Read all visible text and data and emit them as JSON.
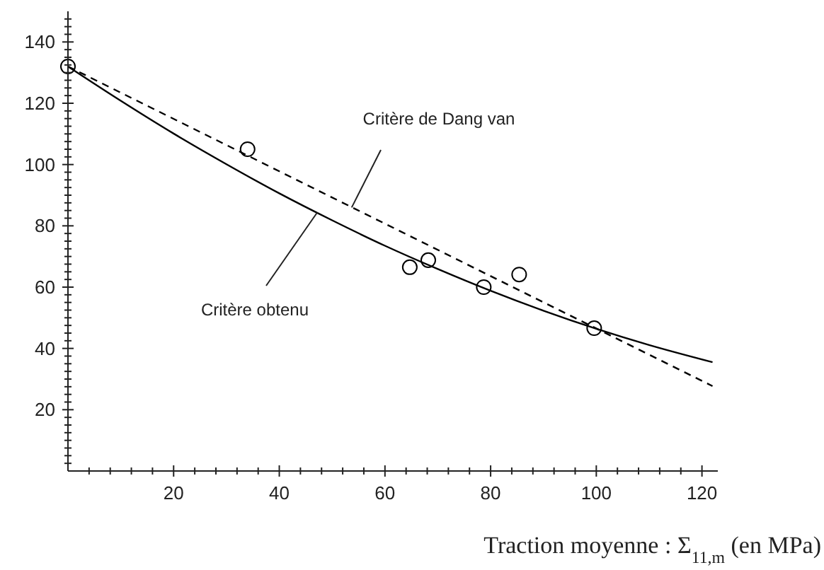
{
  "chart_data": {
    "type": "scatter",
    "xlabel": "Traction moyenne : Σ$_{11,m}$ (en MPa)",
    "xlim": [
      0,
      123
    ],
    "ylim": [
      0,
      150
    ],
    "xticks": [
      {
        "value": 4,
        "label": null
      },
      {
        "value": 8,
        "label": null
      },
      {
        "value": 12,
        "label": null
      },
      {
        "value": 16,
        "label": null
      },
      20,
      {
        "value": 24,
        "label": null
      },
      {
        "value": 28,
        "label": null
      },
      {
        "value": 32,
        "label": null
      },
      {
        "value": 36,
        "label": null
      },
      40,
      {
        "value": 44,
        "label": null
      },
      {
        "value": 48,
        "label": null
      },
      {
        "value": 52,
        "label": null
      },
      {
        "value": 56,
        "label": null
      },
      60,
      {
        "value": 64,
        "label": null
      },
      {
        "value": 68,
        "label": null
      },
      {
        "value": 72,
        "label": null
      },
      {
        "value": 76,
        "label": null
      },
      80,
      {
        "value": 84,
        "label": null
      },
      {
        "value": 88,
        "label": null
      },
      {
        "value": 92,
        "label": null
      },
      {
        "value": 96,
        "label": null
      },
      100,
      {
        "value": 104,
        "label": null
      },
      {
        "value": 108,
        "label": null
      },
      {
        "value": 112,
        "label": null
      },
      {
        "value": 116,
        "label": null
      },
      120
    ],
    "yticks": [
      {
        "value": 2.5,
        "label": null
      },
      {
        "value": 5,
        "label": null
      },
      {
        "value": 7.5,
        "label": null
      },
      {
        "value": 10,
        "label": null
      },
      {
        "value": 12.5,
        "label": null
      },
      {
        "value": 15,
        "label": null
      },
      {
        "value": 17.5,
        "label": null
      },
      20,
      {
        "value": 22.5,
        "label": null
      },
      {
        "value": 25,
        "label": null
      },
      {
        "value": 27.5,
        "label": null
      },
      {
        "value": 30,
        "label": null
      },
      {
        "value": 32.5,
        "label": null
      },
      {
        "value": 35,
        "label": null
      },
      {
        "value": 37.5,
        "label": null
      },
      40,
      {
        "value": 42.5,
        "label": null
      },
      {
        "value": 45,
        "label": null
      },
      {
        "value": 47.5,
        "label": null
      },
      {
        "value": 50,
        "label": null
      },
      {
        "value": 52.5,
        "label": null
      },
      {
        "value": 55,
        "label": null
      },
      {
        "value": 57.5,
        "label": null
      },
      60,
      {
        "value": 62.5,
        "label": null
      },
      {
        "value": 65,
        "label": null
      },
      {
        "value": 67.5,
        "label": null
      },
      {
        "value": 70,
        "label": null
      },
      {
        "value": 72.5,
        "label": null
      },
      {
        "value": 75,
        "label": null
      },
      {
        "value": 77.5,
        "label": null
      },
      80,
      {
        "value": 82.5,
        "label": null
      },
      {
        "value": 85,
        "label": null
      },
      {
        "value": 87.5,
        "label": null
      },
      {
        "value": 90,
        "label": null
      },
      {
        "value": 92.5,
        "label": null
      },
      {
        "value": 95,
        "label": null
      },
      {
        "value": 97.5,
        "label": null
      },
      100,
      {
        "value": 102.5,
        "label": null
      },
      {
        "value": 105,
        "label": null
      },
      {
        "value": 107.5,
        "label": null
      },
      {
        "value": 110,
        "label": null
      },
      {
        "value": 112.5,
        "label": null
      },
      {
        "value": 115,
        "label": null
      },
      {
        "value": 117.5,
        "label": null
      },
      120,
      {
        "value": 122.5,
        "label": null
      },
      {
        "value": 125,
        "label": null
      },
      {
        "value": 127.5,
        "label": null
      },
      {
        "value": 130,
        "label": null
      },
      {
        "value": 132.5,
        "label": null
      },
      {
        "value": 135,
        "label": null
      },
      {
        "value": 137.5,
        "label": null
      },
      140,
      {
        "value": 142.5,
        "label": null
      },
      {
        "value": 145,
        "label": null
      },
      {
        "value": 147.5,
        "label": null
      }
    ],
    "grid": false,
    "series": [
      {
        "color": "#000000",
        "marker": "circle",
        "x": [
          0,
          34,
          64.7,
          68.2,
          78.7,
          85.4,
          99.6
        ],
        "values": [
          132,
          105,
          66.5,
          68.8,
          60,
          64.1,
          46.6
        ]
      },
      {
        "type": "line",
        "color": "#000000",
        "marker": "none",
        "line_style": "dashed",
        "x": [
          0,
          122
        ],
        "values": [
          132,
          27.7
        ]
      },
      {
        "type": "line",
        "color": "#000000",
        "marker": "none",
        "line_style": "solid",
        "x": [
          0,
          10,
          20,
          30,
          40,
          50,
          60,
          70,
          80,
          90,
          100,
          110,
          122
        ],
        "values": [
          132,
          120.8,
          110.1,
          100.1,
          90.6,
          81.8,
          73.5,
          65.9,
          58.8,
          52.3,
          46.4,
          41.1,
          35.5
        ]
      }
    ],
    "annotations": [
      {
        "text": "Critère de Dang van",
        "x": 53.7,
        "y": 86
      },
      {
        "text": "Critère obtenu",
        "x": 47.2,
        "y": 84.4
      }
    ]
  }
}
